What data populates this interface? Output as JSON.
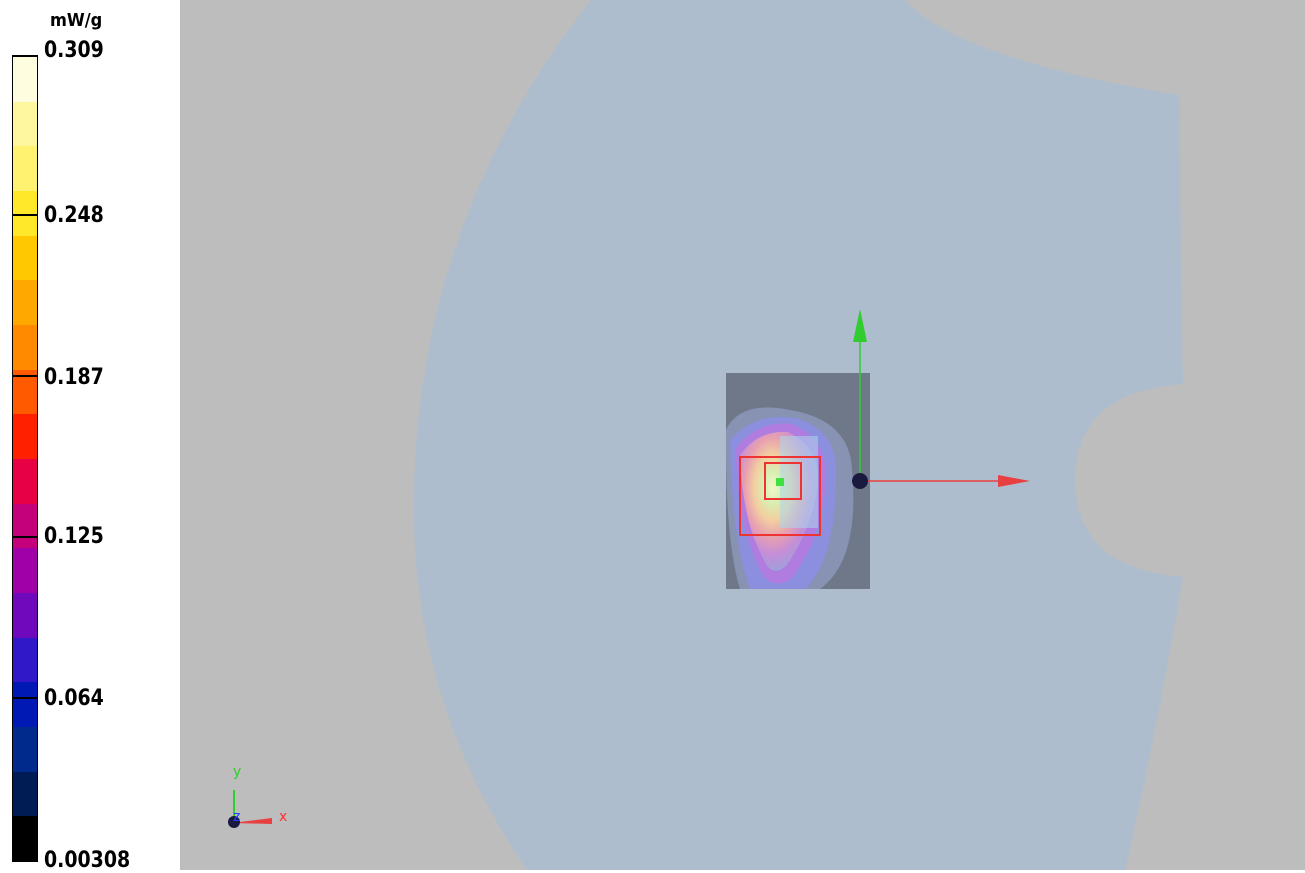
{
  "legend": {
    "unit": "mW/g",
    "ticks": [
      "0.309",
      "0.248",
      "0.187",
      "0.125",
      "0.064",
      "0.00308"
    ],
    "colors": [
      "#fffde0",
      "#fff7a0",
      "#fff270",
      "#ffe82a",
      "#ffc800",
      "#ffa800",
      "#ff8a00",
      "#ff5a00",
      "#ff2000",
      "#e80044",
      "#c4007a",
      "#a000a8",
      "#7008bc",
      "#3018c8",
      "#0018b4",
      "#002a8c",
      "#001c54",
      "#000000"
    ]
  },
  "viewport": {
    "background_color": "#bdbdbd",
    "phantom_color": "#adbdcd",
    "device_color": "#6e7889",
    "marker_color": "#ee3333",
    "probe_axis_x_color": "#e84040",
    "probe_axis_y_color": "#30cc30",
    "origin_color": "#1a1a40"
  },
  "orientation": {
    "x_label": "x",
    "y_label": "y",
    "z_label": "z"
  }
}
